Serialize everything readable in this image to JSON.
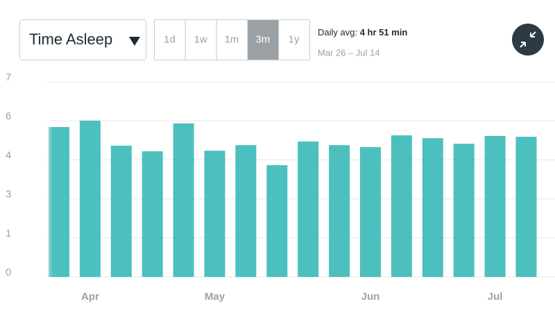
{
  "controls": {
    "metric": "Time Asleep",
    "ranges": [
      "1d",
      "1w",
      "1m",
      "3m",
      "1y"
    ],
    "selected_index": 3
  },
  "summary": {
    "label": "Daily avg:",
    "value": "4 hr 51 min",
    "date_range": "Mar 26 – Jul 14"
  },
  "chart_data": {
    "type": "bar",
    "categories": [
      null,
      "Apr",
      null,
      null,
      null,
      "May",
      null,
      null,
      null,
      null,
      "Jun",
      null,
      null,
      null,
      "Jul",
      null
    ],
    "values": [
      5.38,
      5.61,
      4.71,
      4.51,
      5.51,
      4.53,
      4.73,
      4.01,
      4.86,
      4.73,
      4.66,
      5.08,
      4.98,
      4.78,
      5.06,
      5.03
    ],
    "color": "#4cbfbf",
    "ylim": [
      0,
      7
    ],
    "yticks": [
      {
        "value": 0,
        "label": "0"
      },
      {
        "value": 1.4,
        "label": "1"
      },
      {
        "value": 2.8,
        "label": "3"
      },
      {
        "value": 4.2,
        "label": "4"
      },
      {
        "value": 5.6,
        "label": "6"
      },
      {
        "value": 7,
        "label": "7"
      }
    ],
    "grid": true
  }
}
